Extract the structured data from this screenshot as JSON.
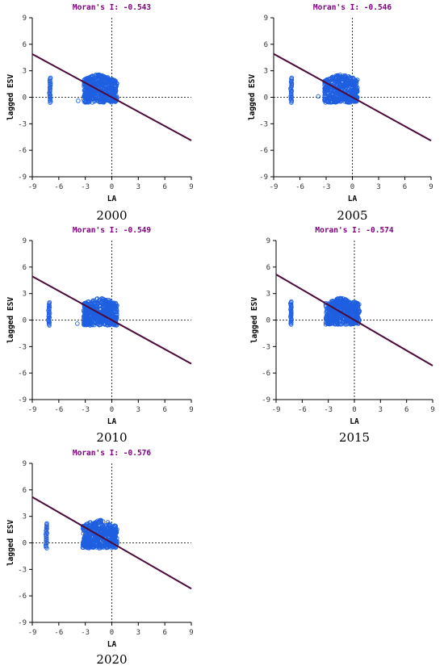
{
  "chart_data": [
    {
      "type": "scatter",
      "caption": "2000",
      "title": "Moran's I: -0.543",
      "xlabel": "LA",
      "ylabel": "lagged ESV",
      "xlim": [
        -9,
        9
      ],
      "ylim": [
        -9,
        9
      ],
      "xticks": [
        "-9",
        "-6",
        "-3",
        "0",
        "3",
        "6",
        "9"
      ],
      "yticks": [
        "9",
        "6",
        "3",
        "0",
        "-3",
        "-6",
        "-9"
      ],
      "slope": -0.543,
      "outliers": {
        "x": -7.0,
        "ymin": -0.6,
        "ymax": 2.2
      },
      "cloud": {
        "xmin": -3.2,
        "xmax": 0.6,
        "ymin": -0.6,
        "ymax": 2.6,
        "peak_x": -1.5
      },
      "extra_points": [
        [
          -3.8,
          -0.4
        ]
      ],
      "colors": {
        "title": "#800080",
        "points": "#1f5fe0",
        "line": "#4a0a3a"
      },
      "grid": false
    },
    {
      "type": "scatter",
      "caption": "2005",
      "title": "Moran's I: -0.546",
      "xlabel": "LA",
      "ylabel": "lagged ESV",
      "xlim": [
        -9,
        9
      ],
      "ylim": [
        -9,
        9
      ],
      "xticks": [
        "-9",
        "-6",
        "-3",
        "0",
        "3",
        "6",
        "9"
      ],
      "yticks": [
        "9",
        "6",
        "3",
        "0",
        "-3",
        "-6",
        "-9"
      ],
      "slope": -0.546,
      "outliers": {
        "x": -7.0,
        "ymin": -0.6,
        "ymax": 2.2
      },
      "cloud": {
        "xmin": -3.2,
        "xmax": 0.6,
        "ymin": -0.6,
        "ymax": 2.6,
        "peak_x": -1.2
      },
      "extra_points": [
        [
          -3.9,
          0.1
        ]
      ],
      "colors": {
        "title": "#800080",
        "points": "#1f5fe0",
        "line": "#4a0a3a"
      },
      "grid": false
    },
    {
      "type": "scatter",
      "caption": "2010",
      "title": "Moran's I: -0.549",
      "xlabel": "LA",
      "ylabel": "lagged ESV",
      "xlim": [
        -9,
        9
      ],
      "ylim": [
        -9,
        9
      ],
      "xticks": [
        "-9",
        "-6",
        "-3",
        "0",
        "3",
        "6",
        "9"
      ],
      "yticks": [
        "9",
        "6",
        "3",
        "0",
        "-3",
        "-6",
        "-9"
      ],
      "slope": -0.549,
      "outliers": {
        "x": -7.1,
        "ymin": -0.6,
        "ymax": 2.0
      },
      "cloud": {
        "xmin": -3.2,
        "xmax": 0.6,
        "ymin": -0.6,
        "ymax": 2.5,
        "peak_x": -1.3
      },
      "extra_points": [
        [
          -3.9,
          -0.4
        ]
      ],
      "colors": {
        "title": "#800080",
        "points": "#1f5fe0",
        "line": "#4a0a3a"
      },
      "grid": false
    },
    {
      "type": "scatter",
      "caption": "2015",
      "title": "Moran's I: -0.574",
      "xlabel": "LA",
      "ylabel": "lagged ESV",
      "xlim": [
        -9,
        9
      ],
      "ylim": [
        -9,
        9
      ],
      "xticks": [
        "-9",
        "-6",
        "-3",
        "0",
        "3",
        "6",
        "9"
      ],
      "yticks": [
        "9",
        "6",
        "3",
        "0",
        "-3",
        "-6",
        "-9"
      ],
      "slope": -0.574,
      "outliers": {
        "x": -7.3,
        "ymin": -0.5,
        "ymax": 2.1
      },
      "cloud": {
        "xmin": -3.3,
        "xmax": 0.6,
        "ymin": -0.5,
        "ymax": 2.5,
        "peak_x": -1.5
      },
      "extra_points": [],
      "colors": {
        "title": "#800080",
        "points": "#1f5fe0",
        "line": "#4a0a3a"
      },
      "grid": false
    },
    {
      "type": "scatter",
      "caption": "2020",
      "title": "Moran's I: -0.576",
      "xlabel": "LA",
      "ylabel": "lagged ESV",
      "xlim": [
        -9,
        9
      ],
      "ylim": [
        -9,
        9
      ],
      "xticks": [
        "-9",
        "-6",
        "-3",
        "0",
        "3",
        "6",
        "9"
      ],
      "yticks": [
        "9",
        "6",
        "3",
        "0",
        "-3",
        "-6",
        "-9"
      ],
      "slope": -0.576,
      "outliers": {
        "x": -7.4,
        "ymin": -0.6,
        "ymax": 2.2
      },
      "cloud": {
        "xmin": -3.3,
        "xmax": 0.6,
        "ymin": -0.6,
        "ymax": 2.6,
        "peak_x": -1.4
      },
      "extra_points": [],
      "colors": {
        "title": "#800080",
        "points": "#1f5fe0",
        "line": "#4a0a3a"
      },
      "grid": false
    }
  ]
}
